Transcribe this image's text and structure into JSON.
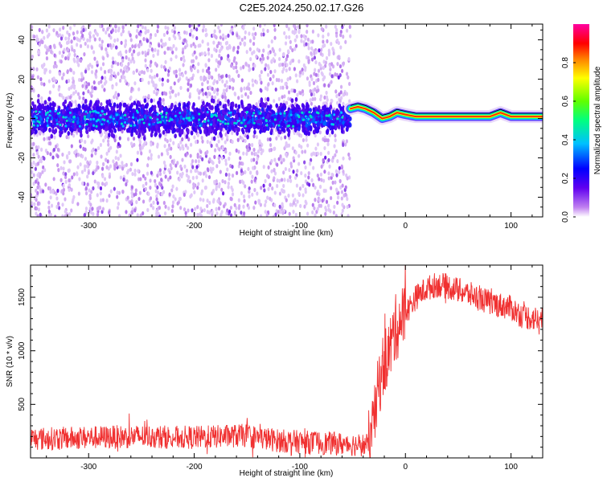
{
  "title": "C2E5.2024.250.02.17.G26",
  "chart_data": [
    {
      "type": "heatmap",
      "xlabel": "Height of straight line (km)",
      "ylabel": "Frequency (Hz)",
      "xlim": [
        -355,
        130
      ],
      "ylim": [
        -50,
        48
      ],
      "x_ticks": [
        -300,
        -200,
        -100,
        0,
        100
      ],
      "x_tick_labels": [
        "-300",
        "-200",
        "-100",
        "0",
        "100"
      ],
      "y_ticks": [
        -40,
        -20,
        0,
        20,
        40
      ],
      "y_tick_labels": [
        "-40",
        "-20",
        "0",
        "20",
        "40"
      ],
      "colorbar": {
        "label": "Normalized spectral amplitude",
        "range": [
          0,
          1
        ],
        "ticks": [
          0,
          0.2,
          0.4,
          0.6,
          0.8
        ],
        "tick_labels": [
          "0.0",
          "0.2",
          "0.4",
          "0.6",
          "0.8"
        ],
        "colormap": [
          "#ffffff",
          "#c080f0",
          "#6000f0",
          "#0000ff",
          "#00c0ff",
          "#00ff80",
          "#60ff00",
          "#ffff00",
          "#ff8000",
          "#ff0000",
          "#ff00a0"
        ]
      },
      "noise_region": {
        "x_range": [
          -355,
          -52
        ],
        "central_band_hz": [
          -10,
          10
        ],
        "spread_hz": [
          -50,
          48
        ]
      },
      "signal_track": [
        {
          "x": -52,
          "y": 5
        },
        {
          "x": -45,
          "y": 6
        },
        {
          "x": -38,
          "y": 5
        },
        {
          "x": -30,
          "y": 3
        },
        {
          "x": -22,
          "y": 0
        },
        {
          "x": -15,
          "y": 1
        },
        {
          "x": -8,
          "y": 3
        },
        {
          "x": 0,
          "y": 2
        },
        {
          "x": 10,
          "y": 1
        },
        {
          "x": 30,
          "y": 1
        },
        {
          "x": 60,
          "y": 1
        },
        {
          "x": 80,
          "y": 1
        },
        {
          "x": 90,
          "y": 3
        },
        {
          "x": 100,
          "y": 1
        },
        {
          "x": 130,
          "y": 1
        }
      ]
    },
    {
      "type": "line",
      "xlabel": "Height of straight line (km)",
      "ylabel": "SNR (10 * v/v)",
      "xlim": [
        -355,
        130
      ],
      "ylim": [
        0,
        1800
      ],
      "x_ticks": [
        -300,
        -200,
        -100,
        0,
        100
      ],
      "x_tick_labels": [
        "-300",
        "-200",
        "-100",
        "0",
        "100"
      ],
      "y_ticks": [
        500,
        1000,
        1500
      ],
      "y_tick_labels": [
        "500",
        "1000",
        "1500"
      ],
      "line_color": "#f03030",
      "series": [
        {
          "x": [
            -355,
            -330,
            -300,
            -250,
            -200,
            -150,
            -140,
            -120,
            -100,
            -60,
            -35,
            -30,
            -25,
            -20,
            -15,
            -10,
            0,
            10,
            20,
            30,
            40,
            60,
            80,
            100,
            110,
            130
          ],
          "y": [
            180,
            180,
            190,
            200,
            190,
            210,
            190,
            160,
            150,
            130,
            120,
            300,
            700,
            900,
            1000,
            1200,
            1350,
            1500,
            1580,
            1620,
            1600,
            1530,
            1450,
            1400,
            1330,
            1280
          ]
        }
      ]
    }
  ]
}
